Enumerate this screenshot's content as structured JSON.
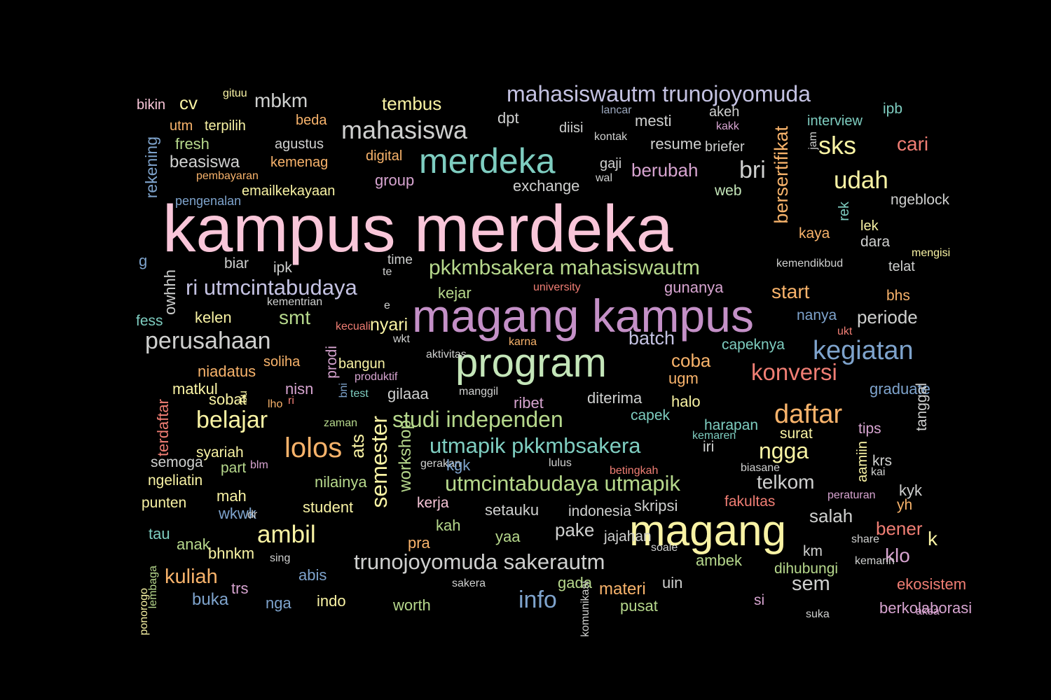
{
  "palette": {
    "pink": "#f9c6d9",
    "teal": "#7ecdc0",
    "purple": "#c490c7",
    "mint": "#c4e6b9",
    "lavender": "#c4c2e2",
    "blue": "#7ea3cc",
    "yellow": "#f9f3a4",
    "orange": "#f8b36b",
    "coral": "#f07e74",
    "green": "#b6d88c",
    "gray": "#cfd0cf",
    "grayblue": "#9aa6bc",
    "lightpurple": "#d7a4d0"
  },
  "words": [
    {
      "text": "kampus merdeka",
      "color": "pink"
    },
    {
      "text": "magang kampus",
      "color": "purple"
    },
    {
      "text": "program",
      "color": "mint"
    },
    {
      "text": "magang",
      "color": "yellow"
    },
    {
      "text": "merdeka",
      "color": "teal"
    },
    {
      "text": "mahasiswa",
      "color": "gray"
    },
    {
      "text": "mahasiswautm trunojoyomuda",
      "color": "lavender"
    },
    {
      "text": "pkkmbsakera mahasiswautm",
      "color": "green"
    },
    {
      "text": "ri utmcintabudaya",
      "color": "lavender"
    },
    {
      "text": "perusahaan",
      "color": "gray"
    },
    {
      "text": "kegiatan",
      "color": "blue"
    },
    {
      "text": "studi independen",
      "color": "green"
    },
    {
      "text": "utmapik pkkmbsakera",
      "color": "teal"
    },
    {
      "text": "utmcintabudaya utmapik",
      "color": "green"
    },
    {
      "text": "trunojoyomuda sakerautm",
      "color": "gray"
    },
    {
      "text": "lolos",
      "color": "orange"
    },
    {
      "text": "belajar",
      "color": "yellow"
    },
    {
      "text": "ambil",
      "color": "yellow"
    },
    {
      "text": "daftar",
      "color": "orange"
    },
    {
      "text": "konversi",
      "color": "coral"
    },
    {
      "text": "semester",
      "color": "yellow"
    },
    {
      "text": "sks",
      "color": "yellow"
    },
    {
      "text": "udah",
      "color": "yellow"
    },
    {
      "text": "cari",
      "color": "coral"
    },
    {
      "text": "bri",
      "color": "gray"
    },
    {
      "text": "mbkm",
      "color": "gray"
    },
    {
      "text": "tembus",
      "color": "yellow"
    },
    {
      "text": "info",
      "color": "blue"
    },
    {
      "text": "ngga",
      "color": "yellow"
    },
    {
      "text": "telkom",
      "color": "gray"
    },
    {
      "text": "kuliah",
      "color": "orange"
    },
    {
      "text": "bersertifikat",
      "color": "orange"
    },
    {
      "text": "start",
      "color": "orange"
    },
    {
      "text": "batch",
      "color": "lavender"
    },
    {
      "text": "coba",
      "color": "orange"
    },
    {
      "text": "periode",
      "color": "gray"
    },
    {
      "text": "berubah",
      "color": "lightpurple"
    },
    {
      "text": "exchange",
      "color": "gray"
    },
    {
      "text": "beasiswa",
      "color": "gray"
    },
    {
      "text": "nyari",
      "color": "yellow"
    },
    {
      "text": "smt",
      "color": "green"
    },
    {
      "text": "workshop",
      "color": "green"
    },
    {
      "text": "ats",
      "color": "yellow"
    },
    {
      "text": "klo",
      "color": "lightpurple"
    },
    {
      "text": "k",
      "color": "yellow"
    },
    {
      "text": "sem",
      "color": "gray"
    },
    {
      "text": "salah",
      "color": "gray"
    },
    {
      "text": "pake",
      "color": "gray"
    },
    {
      "text": "bikin",
      "color": "pink"
    },
    {
      "text": "cv",
      "color": "yellow"
    },
    {
      "text": "gituu",
      "color": "yellow"
    },
    {
      "text": "utm",
      "color": "orange"
    },
    {
      "text": "terpilih",
      "color": "yellow"
    },
    {
      "text": "fresh",
      "color": "green"
    },
    {
      "text": "beda",
      "color": "orange"
    },
    {
      "text": "agustus",
      "color": "gray"
    },
    {
      "text": "kemenag",
      "color": "orange"
    },
    {
      "text": "pembayaran",
      "color": "orange"
    },
    {
      "text": "emailkekayaan",
      "color": "yellow"
    },
    {
      "text": "digital",
      "color": "orange"
    },
    {
      "text": "group",
      "color": "lightpurple"
    },
    {
      "text": "dpt",
      "color": "gray"
    },
    {
      "text": "diisi",
      "color": "gray"
    },
    {
      "text": "lancar",
      "color": "grayblue"
    },
    {
      "text": "mesti",
      "color": "gray"
    },
    {
      "text": "kontak",
      "color": "gray"
    },
    {
      "text": "resume",
      "color": "gray"
    },
    {
      "text": "briefer",
      "color": "gray"
    },
    {
      "text": "gaji",
      "color": "gray"
    },
    {
      "text": "wal",
      "color": "gray"
    },
    {
      "text": "akeh",
      "color": "gray"
    },
    {
      "text": "kakk",
      "color": "lightpurple"
    },
    {
      "text": "interview",
      "color": "teal"
    },
    {
      "text": "ipb",
      "color": "teal"
    },
    {
      "text": "web",
      "color": "mint"
    },
    {
      "text": "jam",
      "color": "gray"
    },
    {
      "text": "ngeblock",
      "color": "gray"
    },
    {
      "text": "kaya",
      "color": "orange"
    },
    {
      "text": "lek",
      "color": "yellow"
    },
    {
      "text": "dara",
      "color": "gray"
    },
    {
      "text": "mengisi",
      "color": "yellow"
    },
    {
      "text": "telat",
      "color": "gray"
    },
    {
      "text": "bhs",
      "color": "orange"
    },
    {
      "text": "rek",
      "color": "teal"
    },
    {
      "text": "kemendikbud",
      "color": "gray"
    },
    {
      "text": "gunanya",
      "color": "lightpurple"
    },
    {
      "text": "university",
      "color": "coral"
    },
    {
      "text": "rekening",
      "color": "blue"
    },
    {
      "text": "pengenalan",
      "color": "blue"
    },
    {
      "text": "g",
      "color": "blue"
    },
    {
      "text": "biar",
      "color": "gray"
    },
    {
      "text": "ipk",
      "color": "gray"
    },
    {
      "text": "time",
      "color": "gray"
    },
    {
      "text": "te",
      "color": "gray"
    },
    {
      "text": "owhhh",
      "color": "gray"
    },
    {
      "text": "kejar",
      "color": "green"
    },
    {
      "text": "kementrian",
      "color": "gray"
    },
    {
      "text": "e",
      "color": "gray"
    },
    {
      "text": "fess",
      "color": "teal"
    },
    {
      "text": "kelen",
      "color": "yellow"
    },
    {
      "text": "kecuali",
      "color": "coral"
    },
    {
      "text": "wkt",
      "color": "gray"
    },
    {
      "text": "karna",
      "color": "orange"
    },
    {
      "text": "capeknya",
      "color": "teal"
    },
    {
      "text": "nanya",
      "color": "blue"
    },
    {
      "text": "ukt",
      "color": "coral"
    },
    {
      "text": "soliha",
      "color": "orange"
    },
    {
      "text": "bangun",
      "color": "yellow"
    },
    {
      "text": "aktivitas",
      "color": "gray"
    },
    {
      "text": "prodi",
      "color": "lightpurple"
    },
    {
      "text": "produktif",
      "color": "lightpurple"
    },
    {
      "text": "niadatus",
      "color": "orange"
    },
    {
      "text": "matkul",
      "color": "yellow"
    },
    {
      "text": "nisn",
      "color": "lightpurple"
    },
    {
      "text": "bni",
      "color": "blue"
    },
    {
      "text": "test",
      "color": "teal"
    },
    {
      "text": "gilaaa",
      "color": "gray"
    },
    {
      "text": "manggil",
      "color": "gray"
    },
    {
      "text": "ugm",
      "color": "orange"
    },
    {
      "text": "graduate",
      "color": "blue"
    },
    {
      "text": "sobat",
      "color": "yellow"
    },
    {
      "text": "bu",
      "color": "yellow"
    },
    {
      "text": "lho",
      "color": "orange"
    },
    {
      "text": "ri",
      "color": "coral"
    },
    {
      "text": "ribet",
      "color": "lightpurple"
    },
    {
      "text": "diterima",
      "color": "gray"
    },
    {
      "text": "halo",
      "color": "yellow"
    },
    {
      "text": "tanggal",
      "color": "gray"
    },
    {
      "text": "terdaftar",
      "color": "coral"
    },
    {
      "text": "zaman",
      "color": "green"
    },
    {
      "text": "capek",
      "color": "teal"
    },
    {
      "text": "harapan",
      "color": "teal"
    },
    {
      "text": "tips",
      "color": "lightpurple"
    },
    {
      "text": "syariah",
      "color": "yellow"
    },
    {
      "text": "kemaren",
      "color": "teal"
    },
    {
      "text": "iri",
      "color": "gray"
    },
    {
      "text": "surat",
      "color": "yellow"
    },
    {
      "text": "aamiin",
      "color": "yellow"
    },
    {
      "text": "semoga",
      "color": "gray"
    },
    {
      "text": "part",
      "color": "green"
    },
    {
      "text": "blm",
      "color": "lightpurple"
    },
    {
      "text": "gerakan",
      "color": "gray"
    },
    {
      "text": "kgk",
      "color": "blue"
    },
    {
      "text": "lulus",
      "color": "gray"
    },
    {
      "text": "betingkah",
      "color": "coral"
    },
    {
      "text": "biasane",
      "color": "gray"
    },
    {
      "text": "krs",
      "color": "gray"
    },
    {
      "text": "kai",
      "color": "gray"
    },
    {
      "text": "ngeliatin",
      "color": "yellow"
    },
    {
      "text": "nilainya",
      "color": "green"
    },
    {
      "text": "kyk",
      "color": "gray"
    },
    {
      "text": "punten",
      "color": "yellow"
    },
    {
      "text": "mah",
      "color": "yellow"
    },
    {
      "text": "student",
      "color": "yellow"
    },
    {
      "text": "kerja",
      "color": "pink"
    },
    {
      "text": "skripsi",
      "color": "gray"
    },
    {
      "text": "fakultas",
      "color": "coral"
    },
    {
      "text": "peraturan",
      "color": "lightpurple"
    },
    {
      "text": "yh",
      "color": "orange"
    },
    {
      "text": "wkwk",
      "color": "blue"
    },
    {
      "text": "dr",
      "color": "gray"
    },
    {
      "text": "setauku",
      "color": "gray"
    },
    {
      "text": "indonesia",
      "color": "gray"
    },
    {
      "text": "kah",
      "color": "green"
    },
    {
      "text": "bener",
      "color": "coral"
    },
    {
      "text": "tau",
      "color": "teal"
    },
    {
      "text": "anak",
      "color": "green"
    },
    {
      "text": "yaa",
      "color": "green"
    },
    {
      "text": "jajahan",
      "color": "gray"
    },
    {
      "text": "km",
      "color": "gray"
    },
    {
      "text": "share",
      "color": "gray"
    },
    {
      "text": "pra",
      "color": "orange"
    },
    {
      "text": "bhnkm",
      "color": "yellow"
    },
    {
      "text": "soale",
      "color": "gray"
    },
    {
      "text": "ambek",
      "color": "green"
    },
    {
      "text": "dihubungi",
      "color": "green"
    },
    {
      "text": "kemarin",
      "color": "gray"
    },
    {
      "text": "sing",
      "color": "gray"
    },
    {
      "text": "lembaga",
      "color": "green"
    },
    {
      "text": "abis",
      "color": "blue"
    },
    {
      "text": "gada",
      "color": "green"
    },
    {
      "text": "uin",
      "color": "gray"
    },
    {
      "text": "ekosistem",
      "color": "coral"
    },
    {
      "text": "buka",
      "color": "blue"
    },
    {
      "text": "trs",
      "color": "lightpurple"
    },
    {
      "text": "sakera",
      "color": "gray"
    },
    {
      "text": "materi",
      "color": "orange"
    },
    {
      "text": "si",
      "color": "lightpurple"
    },
    {
      "text": "ponorogo",
      "color": "yellow"
    },
    {
      "text": "nga",
      "color": "blue"
    },
    {
      "text": "indo",
      "color": "yellow"
    },
    {
      "text": "worth",
      "color": "green"
    },
    {
      "text": "komunikasi",
      "color": "gray"
    },
    {
      "text": "pusat",
      "color": "green"
    },
    {
      "text": "berkolaborasi",
      "color": "lightpurple"
    },
    {
      "text": "aksa",
      "color": "lightpurple"
    },
    {
      "text": "suka",
      "color": "gray"
    },
    {
      "text": "ekonomi",
      "color": "gray"
    }
  ]
}
